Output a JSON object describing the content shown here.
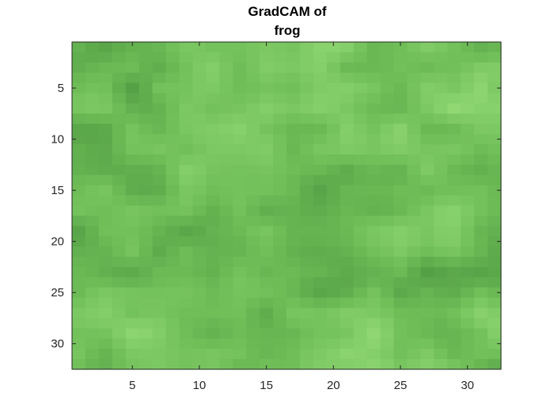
{
  "figure": {
    "title_lines": [
      "GradCAM of",
      "frog"
    ]
  },
  "image_plot": {
    "x_ticks": [
      {
        "value": 5,
        "label": "5"
      },
      {
        "value": 10,
        "label": "10"
      },
      {
        "value": 15,
        "label": "15"
      },
      {
        "value": 20,
        "label": "20"
      },
      {
        "value": 25,
        "label": "25"
      },
      {
        "value": 30,
        "label": "30"
      }
    ],
    "y_ticks": [
      {
        "value": 5,
        "label": "5"
      },
      {
        "value": 10,
        "label": "10"
      },
      {
        "value": 15,
        "label": "15"
      },
      {
        "value": 20,
        "label": "20"
      },
      {
        "value": 25,
        "label": "25"
      },
      {
        "value": 30,
        "label": "30"
      }
    ],
    "pixel_grid": [
      32,
      32
    ],
    "colors": {
      "base_green": "#6fbe58",
      "dark_green": "#4f9a42",
      "light_green": "#96dc78",
      "axis": "#262626"
    }
  }
}
